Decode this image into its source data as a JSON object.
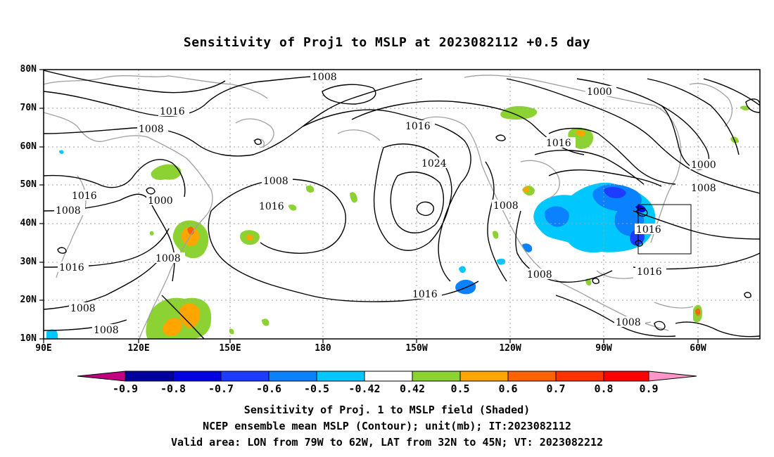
{
  "title": "Sensitivity of Proj1 to MSLP at 2023082112 +0.5 day",
  "map": {
    "lat_labels": [
      "80N",
      "70N",
      "60N",
      "50N",
      "40N",
      "30N",
      "20N",
      "10N"
    ],
    "lon_labels": [
      "90E",
      "120E",
      "150E",
      "180",
      "150W",
      "120W",
      "90W",
      "60W"
    ],
    "contour_labels": [
      {
        "text": "1008",
        "name": "contour-label-1008-a"
      },
      {
        "text": "1016",
        "name": "contour-label-1016-a"
      },
      {
        "text": "1008",
        "name": "contour-label-1008-b"
      },
      {
        "text": "1016",
        "name": "contour-label-1016-b"
      },
      {
        "text": "1000",
        "name": "contour-label-1000-a"
      },
      {
        "text": "1008",
        "name": "contour-label-1008-c"
      },
      {
        "text": "1008",
        "name": "contour-label-1008-d"
      },
      {
        "text": "1016",
        "name": "contour-label-1016-c"
      },
      {
        "text": "1008",
        "name": "contour-label-1008-e"
      },
      {
        "text": "1016",
        "name": "contour-label-1016-d"
      },
      {
        "text": "1024",
        "name": "contour-label-1024"
      },
      {
        "text": "1008",
        "name": "contour-label-1008-f"
      },
      {
        "text": "1016",
        "name": "contour-label-1016-e"
      },
      {
        "text": "1000",
        "name": "contour-label-1000-b"
      },
      {
        "text": "1016",
        "name": "contour-label-1016-f"
      },
      {
        "text": "1000",
        "name": "contour-label-1000-c"
      },
      {
        "text": "1008",
        "name": "contour-label-1008-g"
      },
      {
        "text": "1016",
        "name": "contour-label-1016-g"
      },
      {
        "text": "1016",
        "name": "contour-label-1016-h"
      },
      {
        "text": "1008",
        "name": "contour-label-1008-h"
      },
      {
        "text": "1016",
        "name": "contour-label-1016-i"
      },
      {
        "text": "1008",
        "name": "contour-label-1008-i"
      },
      {
        "text": "1008",
        "name": "contour-label-1008-j"
      },
      {
        "text": "1008",
        "name": "contour-label-1008-k"
      },
      {
        "text": "1008",
        "name": "contour-label-1008-l"
      }
    ],
    "valid_area": {
      "lon_from": -79,
      "lon_to": -62,
      "lat_from": 32,
      "lat_to": 45
    }
  },
  "colorbar": {
    "labels": [
      "-0.9",
      "-0.8",
      "-0.7",
      "-0.6",
      "-0.5",
      "-0.42",
      "0.42",
      "0.5",
      "0.6",
      "0.7",
      "0.8",
      "0.9"
    ],
    "colors": [
      "#c0007f",
      "#00009f",
      "#0000e6",
      "#1e3cff",
      "#0a82ff",
      "#00c8ff",
      "#ffffff",
      "#8cd232",
      "#ffa500",
      "#ff6400",
      "#ff3200",
      "#ff0000",
      "#ff96c8"
    ]
  },
  "captions": {
    "line1": "Sensitivity of Proj. 1 to MSLP field (Shaded)",
    "line2": "NCEP ensemble mean MSLP (Contour); unit(mb); IT:2023082112",
    "line3": "Valid area: LON from 79W to 62W, LAT from 32N to 45N; VT: 2023082212"
  },
  "colors": {
    "contour": "#000000",
    "coastline": "#a0a0a0",
    "grid": "#a0a0a0",
    "positive_shade": "#8cd232",
    "negative_shade": "#00c8ff"
  }
}
